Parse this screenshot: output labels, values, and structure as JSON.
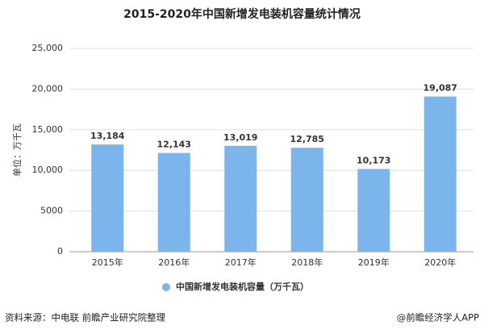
{
  "chart_data": {
    "type": "bar",
    "title": "2015-2020年中国新增发电装机容量统计情况",
    "ylabel": "单位：万千瓦",
    "categories": [
      "2015年",
      "2016年",
      "2017年",
      "2018年",
      "2019年",
      "2020年"
    ],
    "series": [
      {
        "name": "中国新增发电装机容量（万千瓦）",
        "color": "#7cb5ec",
        "values": [
          13184,
          12143,
          13019,
          12785,
          10173,
          19087
        ],
        "value_labels": [
          "13,184",
          "12,143",
          "13,019",
          "12,785",
          "10,173",
          "19,087"
        ]
      }
    ],
    "ylim": [
      0,
      25000
    ],
    "yticks": [
      0,
      5000,
      {
        "value": 10000,
        "label": "10,000"
      },
      {
        "value": 15000,
        "label": "15,000"
      },
      {
        "value": 20000,
        "label": "20,000"
      },
      {
        "value": 25000,
        "label": "25,000"
      }
    ],
    "grid": true,
    "source": "资料来源：中电联 前瞻产业研究院整理",
    "credit": "@前瞻经济学人APP"
  }
}
